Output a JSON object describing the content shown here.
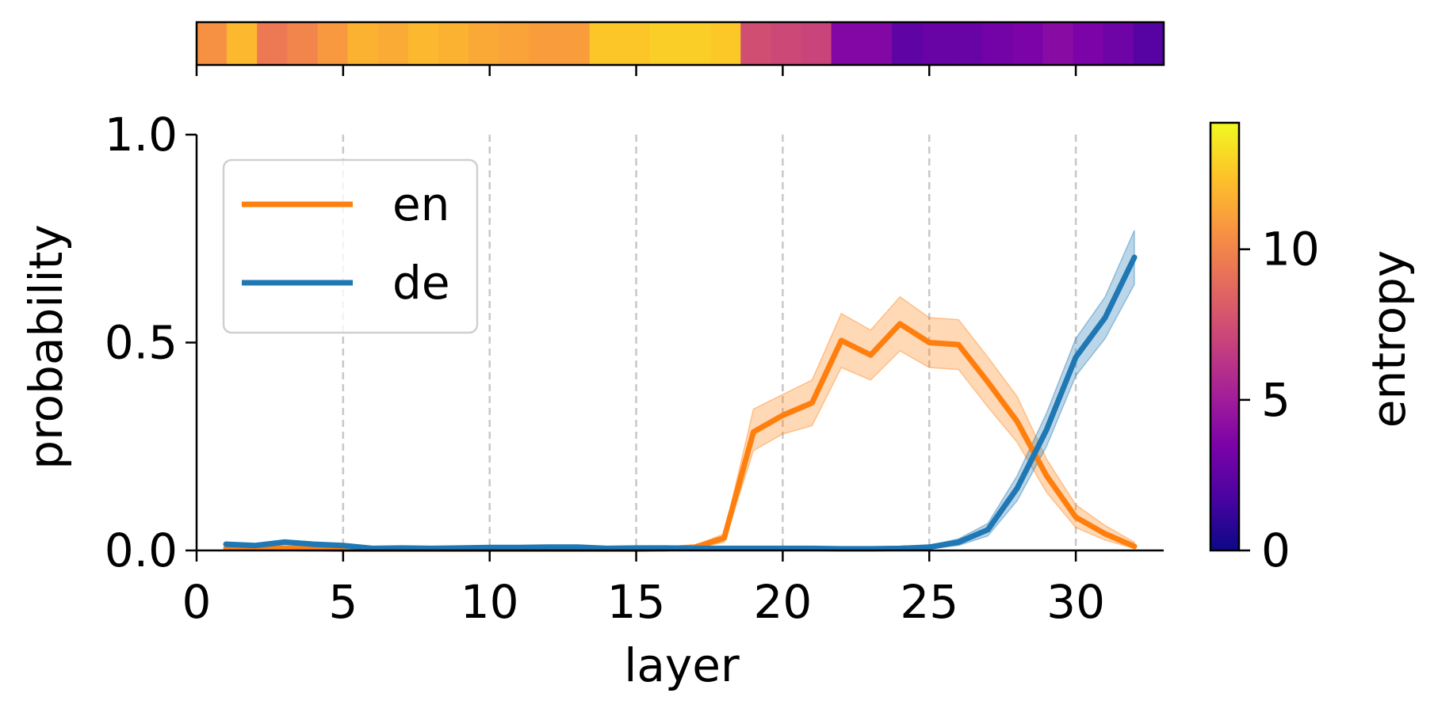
{
  "chart_data": {
    "type": "line",
    "xlabel": "layer",
    "ylabel": "probability",
    "xlim": [
      0,
      33
    ],
    "ylim": [
      0,
      1
    ],
    "x_ticks": [
      0,
      5,
      10,
      15,
      20,
      25,
      30
    ],
    "y_ticks": [
      0.0,
      0.5,
      1.0
    ],
    "y_tick_labels": [
      "0.0",
      "0.5",
      "1.0"
    ],
    "vertical_gridlines_at": [
      5,
      10,
      15,
      20,
      25,
      30
    ],
    "legend": {
      "location": "upper-left"
    },
    "x": [
      1,
      2,
      3,
      4,
      5,
      6,
      7,
      8,
      9,
      10,
      11,
      12,
      13,
      14,
      15,
      16,
      17,
      18,
      19,
      20,
      21,
      22,
      23,
      24,
      25,
      26,
      27,
      28,
      29,
      30,
      31,
      32
    ],
    "series": [
      {
        "name": "en",
        "color": "#ff7f0e",
        "values": [
          0.005,
          0.005,
          0.005,
          0.004,
          0.003,
          0.003,
          0.003,
          0.003,
          0.003,
          0.003,
          0.003,
          0.003,
          0.003,
          0.003,
          0.003,
          0.004,
          0.008,
          0.03,
          0.285,
          0.325,
          0.355,
          0.505,
          0.47,
          0.545,
          0.5,
          0.495,
          0.405,
          0.31,
          0.18,
          0.08,
          0.04,
          0.01
        ],
        "band_lower": [
          0.002,
          0.002,
          0.002,
          0.002,
          0.001,
          0.001,
          0.001,
          0.001,
          0.001,
          0.001,
          0.001,
          0.001,
          0.001,
          0.001,
          0.001,
          0.002,
          0.004,
          0.02,
          0.24,
          0.28,
          0.3,
          0.44,
          0.41,
          0.48,
          0.44,
          0.435,
          0.345,
          0.26,
          0.14,
          0.055,
          0.025,
          0.005
        ],
        "band_upper": [
          0.008,
          0.008,
          0.008,
          0.006,
          0.005,
          0.005,
          0.005,
          0.005,
          0.005,
          0.005,
          0.005,
          0.005,
          0.005,
          0.005,
          0.005,
          0.006,
          0.012,
          0.04,
          0.34,
          0.375,
          0.41,
          0.57,
          0.53,
          0.61,
          0.56,
          0.555,
          0.465,
          0.37,
          0.22,
          0.11,
          0.06,
          0.02
        ]
      },
      {
        "name": "de",
        "color": "#1f77b4",
        "values": [
          0.015,
          0.012,
          0.02,
          0.015,
          0.012,
          0.005,
          0.006,
          0.005,
          0.006,
          0.007,
          0.007,
          0.008,
          0.008,
          0.005,
          0.006,
          0.006,
          0.005,
          0.005,
          0.005,
          0.005,
          0.005,
          0.004,
          0.004,
          0.005,
          0.008,
          0.02,
          0.05,
          0.15,
          0.29,
          0.465,
          0.56,
          0.705
        ],
        "band_lower": [
          0.01,
          0.008,
          0.014,
          0.01,
          0.008,
          0.002,
          0.003,
          0.002,
          0.003,
          0.004,
          0.004,
          0.005,
          0.005,
          0.002,
          0.003,
          0.003,
          0.002,
          0.002,
          0.002,
          0.002,
          0.002,
          0.002,
          0.002,
          0.002,
          0.004,
          0.012,
          0.035,
          0.12,
          0.25,
          0.42,
          0.51,
          0.64
        ],
        "band_upper": [
          0.02,
          0.016,
          0.026,
          0.02,
          0.016,
          0.008,
          0.009,
          0.008,
          0.009,
          0.01,
          0.01,
          0.011,
          0.011,
          0.008,
          0.009,
          0.009,
          0.008,
          0.008,
          0.008,
          0.008,
          0.008,
          0.006,
          0.006,
          0.008,
          0.012,
          0.028,
          0.065,
          0.18,
          0.33,
          0.51,
          0.61,
          0.77
        ]
      }
    ],
    "entropy_strip": {
      "values": [
        10.5,
        12.0,
        9.5,
        10.0,
        10.8,
        11.8,
        11.5,
        12.0,
        11.8,
        11.4,
        11.2,
        11.0,
        11.0,
        12.5,
        12.5,
        12.8,
        12.8,
        12.6,
        7.5,
        7.2,
        7.0,
        3.8,
        3.8,
        2.5,
        2.8,
        2.8,
        3.2,
        3.5,
        4.0,
        3.5,
        3.0,
        2.2
      ]
    },
    "colorbar": {
      "label": "entropy",
      "colormap": "plasma",
      "range": [
        0,
        14.2
      ],
      "ticks": [
        0,
        5,
        10
      ],
      "tick_labels": [
        "0",
        "5",
        "10"
      ]
    }
  }
}
